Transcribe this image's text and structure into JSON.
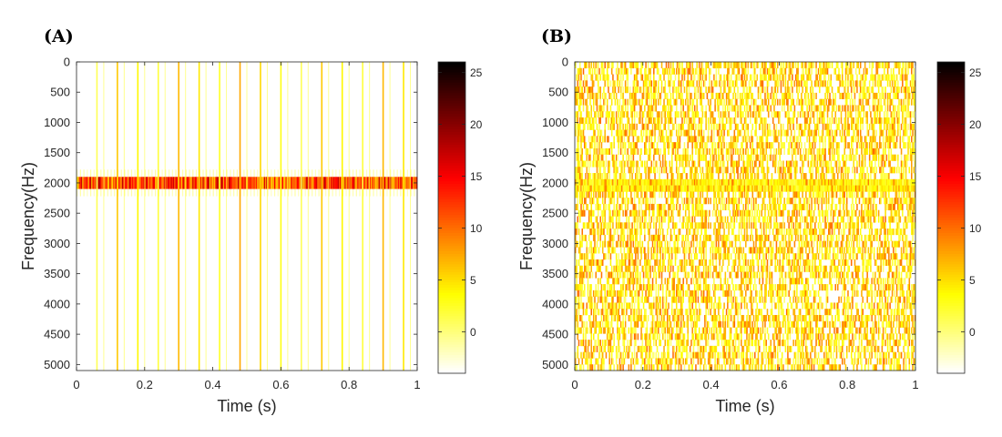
{
  "chart_data": [
    {
      "panel": "(A)",
      "type": "heatmap",
      "xlabel": "Time (s)",
      "ylabel": "Frequency(Hz)",
      "xlim": [
        0,
        1
      ],
      "ylim": [
        0,
        5100
      ],
      "x_ticks": [
        0,
        0.2,
        0.4,
        0.6,
        0.8,
        1
      ],
      "x_tick_labels": [
        "0",
        "0.2",
        "0.4",
        "0.6",
        "0.8",
        "1"
      ],
      "y_ticks": [
        0,
        500,
        1000,
        1500,
        2000,
        2500,
        3000,
        3500,
        4000,
        4500,
        5000
      ],
      "y_tick_labels": [
        "0",
        "500",
        "1000",
        "1500",
        "2000",
        "2500",
        "3000",
        "3500",
        "4000",
        "4500",
        "5000"
      ],
      "y_reversed": true,
      "colormap": "hot",
      "color_range": [
        -4,
        26
      ],
      "colorbar_ticks": [
        0,
        5,
        10,
        15,
        20,
        25
      ],
      "colorbar_tick_labels": [
        "0",
        "5",
        "10",
        "15",
        "20",
        "25"
      ],
      "pattern": "tone",
      "tone_band_hz": [
        1900,
        2100
      ],
      "tone_intensity_range": [
        5,
        18
      ],
      "impulse_times_s": [
        0.06,
        0.12,
        0.18,
        0.24,
        0.3,
        0.36,
        0.42,
        0.48,
        0.54,
        0.6,
        0.66,
        0.72,
        0.78,
        0.84,
        0.9,
        0.96
      ],
      "impulse_intensity_range": [
        1,
        8
      ],
      "background_level": -4
    },
    {
      "panel": "(B)",
      "type": "heatmap",
      "xlabel": "Time (s)",
      "ylabel": "Frequency(Hz)",
      "xlim": [
        0,
        1
      ],
      "ylim": [
        0,
        5100
      ],
      "x_ticks": [
        0,
        0.2,
        0.4,
        0.6,
        0.8,
        1
      ],
      "x_tick_labels": [
        "0",
        "0.2",
        "0.4",
        "0.6",
        "0.8",
        "1"
      ],
      "y_ticks": [
        0,
        500,
        1000,
        1500,
        2000,
        2500,
        3000,
        3500,
        4000,
        4500,
        5000
      ],
      "y_tick_labels": [
        "0",
        "500",
        "1000",
        "1500",
        "2000",
        "2500",
        "3000",
        "3500",
        "4000",
        "4500",
        "5000"
      ],
      "y_reversed": true,
      "colormap": "hot",
      "color_range": [
        -4,
        26
      ],
      "colorbar_ticks": [
        0,
        5,
        10,
        15,
        20,
        25
      ],
      "colorbar_tick_labels": [
        "0",
        "5",
        "10",
        "15",
        "20",
        "25"
      ],
      "pattern": "noise",
      "tone_band_hz": [
        1900,
        2100
      ],
      "tone_intensity_range": [
        1,
        5
      ],
      "noise_intensity_range": [
        -4,
        10
      ],
      "background_level": -4
    }
  ]
}
